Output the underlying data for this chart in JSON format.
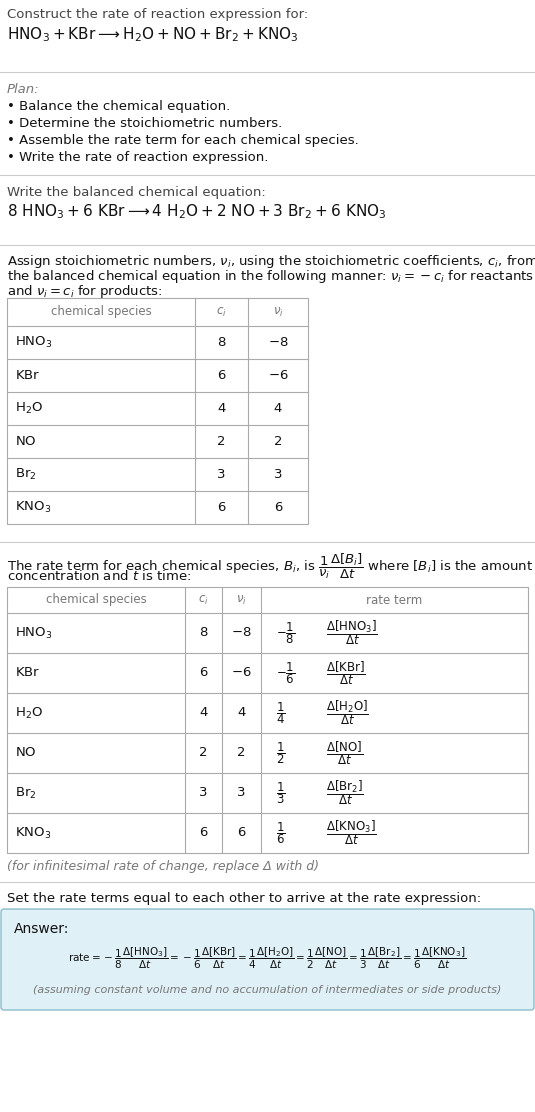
{
  "bg_color": "#ffffff",
  "title_line1": "Construct the rate of reaction expression for:",
  "plan_header": "Plan:",
  "plan_items": [
    "• Balance the chemical equation.",
    "• Determine the stoichiometric numbers.",
    "• Assemble the rate term for each chemical species.",
    "• Write the rate of reaction expression."
  ],
  "balanced_header": "Write the balanced chemical equation:",
  "species": [
    "$\\mathrm{HNO_3}$",
    "$\\mathrm{KBr}$",
    "$\\mathrm{H_2O}$",
    "$\\mathrm{NO}$",
    "$\\mathrm{Br_2}$",
    "$\\mathrm{KNO_3}$"
  ],
  "ci_vals": [
    "8",
    "6",
    "4",
    "2",
    "3",
    "6"
  ],
  "nu_vals": [
    "$-8$",
    "$-6$",
    "4",
    "2",
    "3",
    "6"
  ],
  "rate_fracs": [
    "$-\\dfrac{1}{8}$",
    "$-\\dfrac{1}{6}$",
    "$\\dfrac{1}{4}$",
    "$\\dfrac{1}{2}$",
    "$\\dfrac{1}{3}$",
    "$\\dfrac{1}{6}$"
  ],
  "rate_deltas": [
    "$\\dfrac{\\Delta[\\mathrm{HNO_3}]}{\\Delta t}$",
    "$\\dfrac{\\Delta[\\mathrm{KBr}]}{\\Delta t}$",
    "$\\dfrac{\\Delta[\\mathrm{H_2O}]}{\\Delta t}$",
    "$\\dfrac{\\Delta[\\mathrm{NO}]}{\\Delta t}$",
    "$\\dfrac{\\Delta[\\mathrm{Br_2}]}{\\Delta t}$",
    "$\\dfrac{\\Delta[\\mathrm{KNO_3}]}{\\Delta t}$"
  ],
  "infinitesimal_note": "(for infinitesimal rate of change, replace Δ with d)",
  "set_rate_text": "Set the rate terms equal to each other to arrive at the rate expression:",
  "answer_label": "Answer:",
  "answer_bg": "#dff0f7",
  "answer_border": "#8bbccc",
  "hr_color": "#cccccc",
  "table_border_color": "#aaaaaa",
  "text_dark": "#111111",
  "text_mid": "#444444",
  "text_light": "#777777"
}
